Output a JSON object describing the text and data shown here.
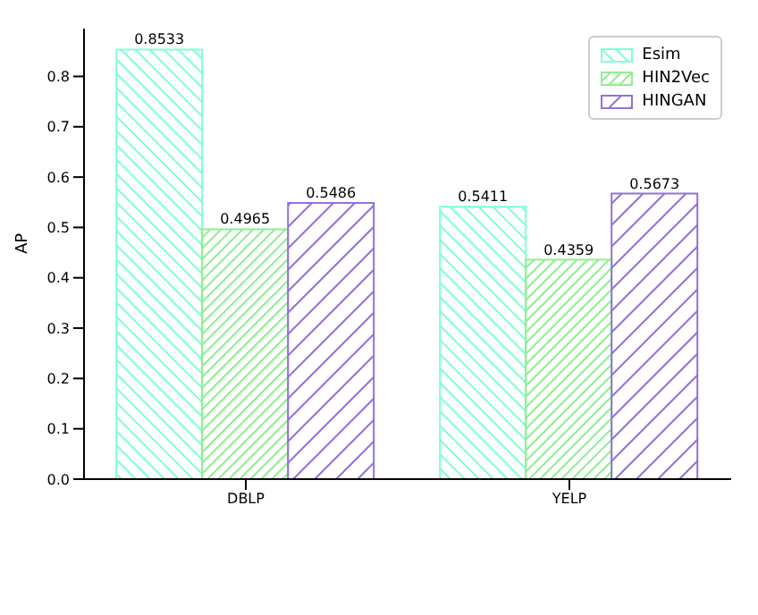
{
  "chart_data": {
    "type": "bar",
    "ylabel": "AP",
    "categories": [
      "DBLP",
      "YELP"
    ],
    "series": [
      {
        "name": "Esim",
        "color": "#7fffd4",
        "values": [
          0.8533,
          0.5411
        ]
      },
      {
        "name": "HIN2Vec",
        "color": "#90ee90",
        "values": [
          0.4965,
          0.4359
        ]
      },
      {
        "name": "HINGAN",
        "color": "#9370db",
        "values": [
          0.5486,
          0.5673
        ]
      }
    ],
    "ylim": [
      0,
      0.895
    ],
    "yticks": [
      {
        "value": 0,
        "label": "0.0"
      },
      {
        "value": 0.1,
        "label": "0.1"
      },
      {
        "value": 0.2,
        "label": "0.2"
      },
      {
        "value": 0.3,
        "label": "0.3"
      },
      {
        "value": 0.4,
        "label": "0.4"
      },
      {
        "value": 0.5,
        "label": "0.5"
      },
      {
        "value": 0.6,
        "label": "0.6"
      },
      {
        "value": 0.7,
        "label": "0.7"
      },
      {
        "value": 0.8,
        "label": "0.8"
      }
    ],
    "data_labels": true,
    "legend": "top right",
    "grid": false
  }
}
